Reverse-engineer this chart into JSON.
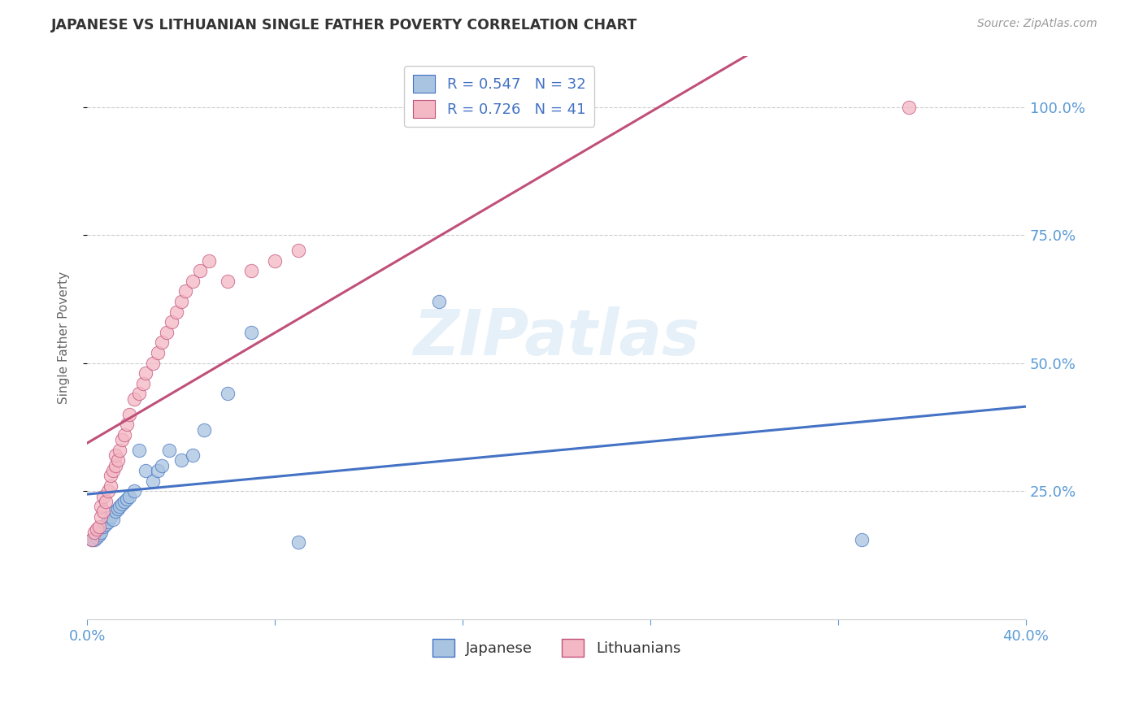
{
  "title": "JAPANESE VS LITHUANIAN SINGLE FATHER POVERTY CORRELATION CHART",
  "source": "Source: ZipAtlas.com",
  "ylabel": "Single Father Poverty",
  "legend_r1": "R = 0.547",
  "legend_n1": "N = 32",
  "legend_r2": "R = 0.726",
  "legend_n2": "N = 41",
  "watermark": "ZIPatlas",
  "japanese_color": "#a8c4e0",
  "lithuanian_color": "#f4b8c4",
  "line_japanese": "#4472c4",
  "line_lithuanian": "#c0507a",
  "axis_color": "#5b9bd5",
  "legend_text_color": "#4472c4",
  "japanese_x": [
    0.002,
    0.003,
    0.004,
    0.005,
    0.006,
    0.007,
    0.008,
    0.009,
    0.01,
    0.011,
    0.012,
    0.013,
    0.014,
    0.015,
    0.016,
    0.017,
    0.018,
    0.02,
    0.022,
    0.025,
    0.028,
    0.03,
    0.032,
    0.035,
    0.04,
    0.045,
    0.05,
    0.06,
    0.07,
    0.09,
    0.15,
    0.33
  ],
  "japanese_y": [
    0.155,
    0.155,
    0.16,
    0.165,
    0.17,
    0.18,
    0.185,
    0.19,
    0.2,
    0.195,
    0.21,
    0.215,
    0.22,
    0.225,
    0.23,
    0.235,
    0.24,
    0.25,
    0.33,
    0.29,
    0.27,
    0.29,
    0.3,
    0.33,
    0.31,
    0.32,
    0.37,
    0.44,
    0.56,
    0.15,
    0.62,
    0.155
  ],
  "lithuanian_x": [
    0.002,
    0.003,
    0.004,
    0.005,
    0.006,
    0.006,
    0.007,
    0.007,
    0.008,
    0.009,
    0.01,
    0.01,
    0.011,
    0.012,
    0.012,
    0.013,
    0.014,
    0.015,
    0.016,
    0.017,
    0.018,
    0.02,
    0.022,
    0.024,
    0.025,
    0.028,
    0.03,
    0.032,
    0.034,
    0.036,
    0.038,
    0.04,
    0.042,
    0.045,
    0.048,
    0.052,
    0.06,
    0.07,
    0.08,
    0.09,
    0.35
  ],
  "lithuanian_y": [
    0.155,
    0.17,
    0.175,
    0.18,
    0.2,
    0.22,
    0.21,
    0.24,
    0.23,
    0.25,
    0.26,
    0.28,
    0.29,
    0.3,
    0.32,
    0.31,
    0.33,
    0.35,
    0.36,
    0.38,
    0.4,
    0.43,
    0.44,
    0.46,
    0.48,
    0.5,
    0.52,
    0.54,
    0.56,
    0.58,
    0.6,
    0.62,
    0.64,
    0.66,
    0.68,
    0.7,
    0.66,
    0.68,
    0.7,
    0.72,
    1.0
  ],
  "xmin": 0.0,
  "xmax": 0.4,
  "ymin": 0.0,
  "ymax": 1.1,
  "xticks": [
    0.0,
    0.08,
    0.16,
    0.24,
    0.32,
    0.4
  ],
  "yticks_right": [
    0.25,
    0.5,
    0.75,
    1.0
  ],
  "yticks_grid": [
    0.25,
    0.5,
    0.75,
    1.0
  ]
}
